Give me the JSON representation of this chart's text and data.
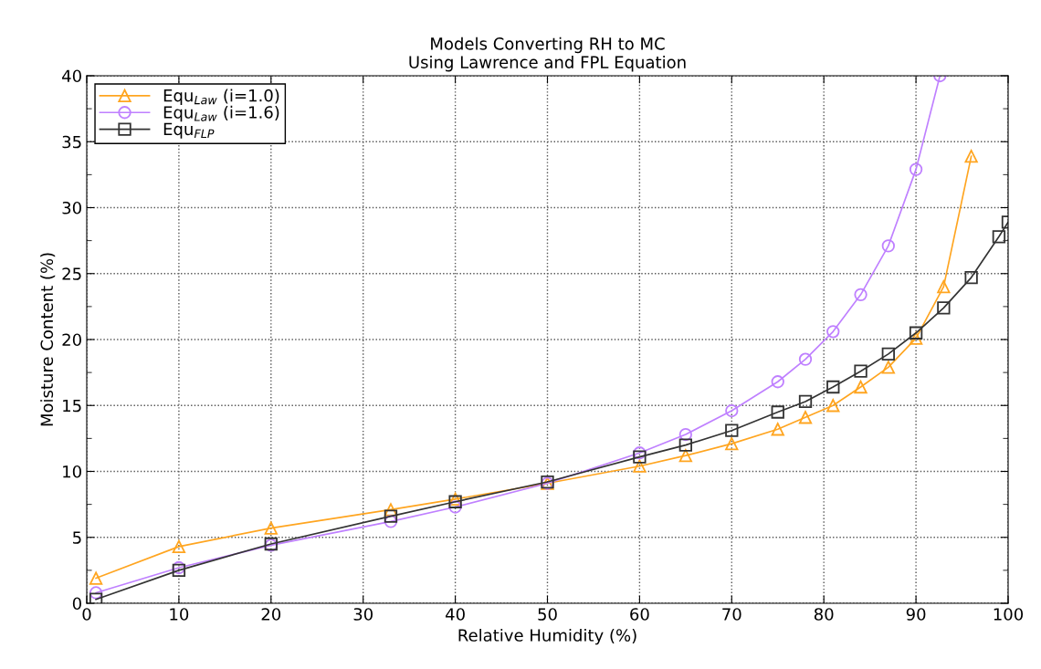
{
  "chart_data": {
    "type": "line",
    "title": "Models Converting RH to MC\nUsing Lawrence and FPL Equation",
    "xlabel": "Relative Humidity (%)",
    "ylabel": "Moisture Content (%)",
    "xlim": [
      0,
      100
    ],
    "ylim": [
      0,
      40
    ],
    "xticks": [
      0,
      10,
      20,
      30,
      40,
      50,
      60,
      70,
      80,
      90,
      100
    ],
    "yticks": [
      0,
      5,
      10,
      15,
      20,
      25,
      30,
      35,
      40
    ],
    "grid": true,
    "legend": "top left",
    "line_style": "solid",
    "series": [
      {
        "name": "Equ$_{Law}$ (i=1.0)",
        "color": "#ffa520",
        "marker": "triangle",
        "x": [
          1,
          10,
          20,
          33,
          40,
          50,
          60,
          65,
          70,
          75,
          78,
          81,
          84,
          87,
          90,
          93,
          96
        ],
        "values": [
          1.9,
          4.3,
          5.7,
          7.1,
          7.9,
          9.1,
          10.4,
          11.2,
          12.1,
          13.2,
          14.1,
          15.0,
          16.4,
          17.9,
          20.1,
          24.0,
          33.9
        ]
      },
      {
        "name": "Equ$_{Law}$ (i=1.6)",
        "color": "#bf80ff",
        "marker": "circle",
        "x": [
          1,
          10,
          20,
          33,
          40,
          50,
          60,
          65,
          70,
          75,
          78,
          81,
          84,
          87,
          90,
          92.6
        ],
        "values": [
          0.8,
          2.7,
          4.4,
          6.2,
          7.3,
          9.1,
          11.4,
          12.8,
          14.6,
          16.8,
          18.5,
          20.6,
          23.4,
          27.1,
          32.9,
          40
        ]
      },
      {
        "name": "Equ$_{FLP}$",
        "color": "#333333",
        "marker": "square",
        "x": [
          1,
          10,
          20,
          33,
          40,
          50,
          60,
          65,
          70,
          75,
          78,
          81,
          84,
          87,
          90,
          93,
          96,
          99,
          100
        ],
        "values": [
          0.3,
          2.5,
          4.5,
          6.6,
          7.7,
          9.2,
          11.1,
          12.0,
          13.1,
          14.5,
          15.3,
          16.4,
          17.6,
          18.9,
          20.5,
          22.4,
          24.7,
          27.8,
          28.9
        ]
      }
    ]
  }
}
